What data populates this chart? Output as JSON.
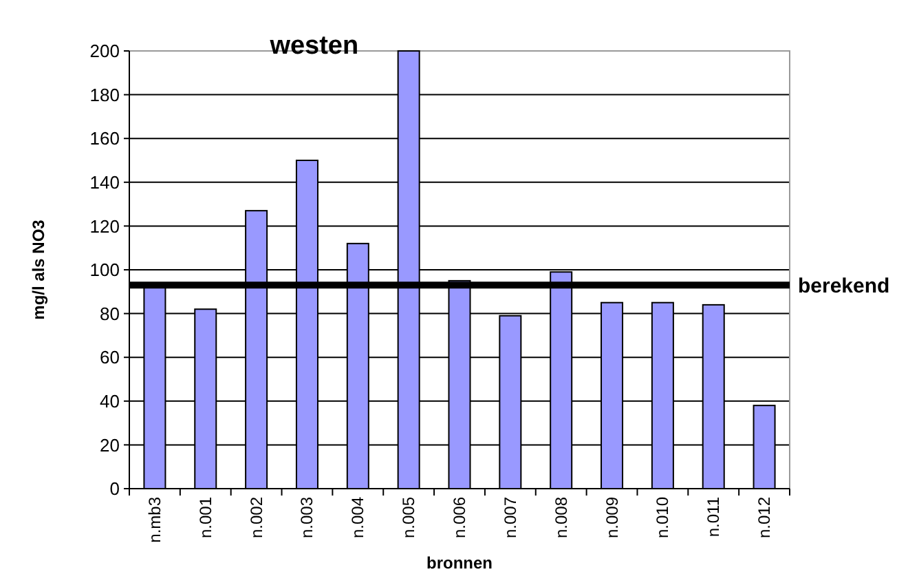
{
  "chart_data": {
    "type": "bar",
    "title": "westen",
    "xlabel": "bronnen",
    "ylabel": "mg/l als NO3",
    "categories": [
      "n.mb3",
      "n.001",
      "n.002",
      "n.003",
      "n.004",
      "n.005",
      "n.006",
      "n.007",
      "n.008",
      "n.009",
      "n.010",
      "n.011",
      "n.012"
    ],
    "values": [
      93,
      82,
      127,
      150,
      112,
      200,
      95,
      79,
      99,
      85,
      85,
      84,
      38
    ],
    "color": "#9999ff",
    "ylim": [
      0,
      200
    ],
    "yticks": [
      0,
      20,
      40,
      60,
      80,
      100,
      120,
      140,
      160,
      180,
      200
    ],
    "grid": "y",
    "ref_lines": [
      {
        "axis": "y",
        "value": 93,
        "label": "berekend",
        "color": "#000000"
      }
    ]
  }
}
